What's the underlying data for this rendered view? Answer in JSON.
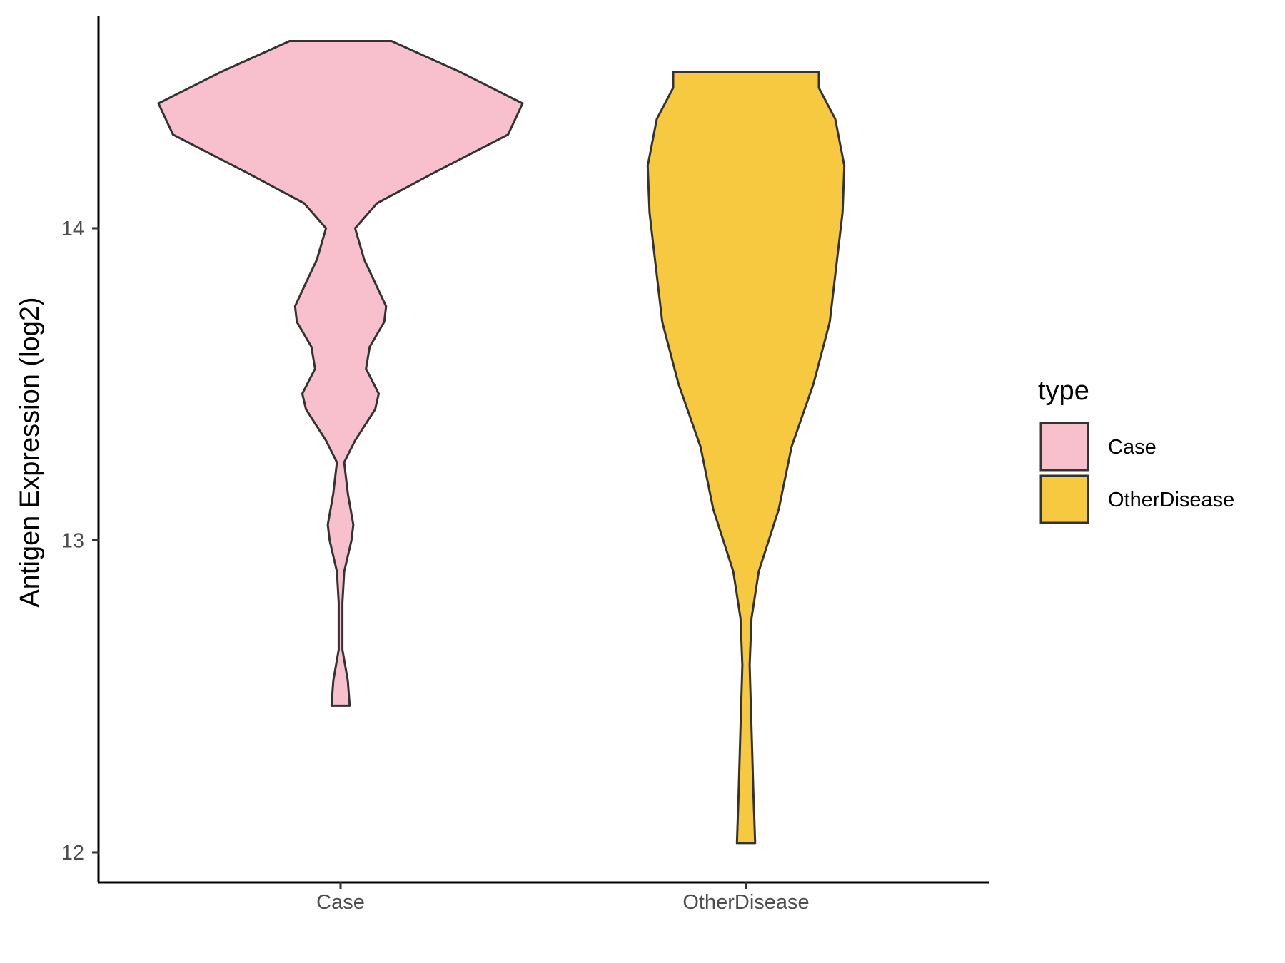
{
  "chart_data": {
    "type": "violin",
    "ylabel": "Antigen Expression (log2)",
    "xlabel": "",
    "categories": [
      "Case",
      "OtherDisease"
    ],
    "yticks": [
      "12",
      "13",
      "14"
    ],
    "ylim": [
      11.9,
      14.7
    ],
    "legend": {
      "title": "type",
      "position": "right",
      "entries": [
        "Case",
        "OtherDisease"
      ]
    },
    "grid": false,
    "series": [
      {
        "name": "Case",
        "color": "#F7C0CC",
        "min": 12.47,
        "max": 14.6,
        "density": [
          [
            12.47,
            0.05
          ],
          [
            12.55,
            0.04
          ],
          [
            12.65,
            0.01
          ],
          [
            12.8,
            0.01
          ],
          [
            12.9,
            0.02
          ],
          [
            13.0,
            0.06
          ],
          [
            13.05,
            0.07
          ],
          [
            13.15,
            0.04
          ],
          [
            13.25,
            0.02
          ],
          [
            13.32,
            0.08
          ],
          [
            13.42,
            0.19
          ],
          [
            13.47,
            0.21
          ],
          [
            13.55,
            0.14
          ],
          [
            13.62,
            0.16
          ],
          [
            13.7,
            0.24
          ],
          [
            13.75,
            0.25
          ],
          [
            13.8,
            0.21
          ],
          [
            13.9,
            0.13
          ],
          [
            14.0,
            0.08
          ],
          [
            14.08,
            0.2
          ],
          [
            14.18,
            0.52
          ],
          [
            14.3,
            0.92
          ],
          [
            14.4,
            1.0
          ],
          [
            14.5,
            0.66
          ],
          [
            14.6,
            0.28
          ]
        ]
      },
      {
        "name": "OtherDisease",
        "color": "#F6C940",
        "min": 12.03,
        "max": 14.5,
        "density": [
          [
            12.03,
            0.05
          ],
          [
            12.2,
            0.04
          ],
          [
            12.4,
            0.03
          ],
          [
            12.6,
            0.02
          ],
          [
            12.75,
            0.03
          ],
          [
            12.9,
            0.07
          ],
          [
            13.1,
            0.18
          ],
          [
            13.3,
            0.25
          ],
          [
            13.5,
            0.37
          ],
          [
            13.7,
            0.46
          ],
          [
            13.9,
            0.5
          ],
          [
            14.05,
            0.53
          ],
          [
            14.2,
            0.54
          ],
          [
            14.35,
            0.49
          ],
          [
            14.45,
            0.4
          ],
          [
            14.5,
            0.4
          ]
        ]
      }
    ]
  }
}
